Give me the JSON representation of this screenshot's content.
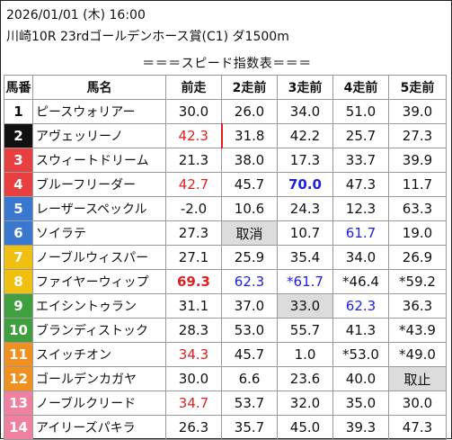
{
  "header": {
    "line1": "2026/01/01 (木) 16:00",
    "line2": "川崎10R 23rdゴールデンホース賞(C1) ダ1500m"
  },
  "title": "＝＝＝スピード指数表＝＝＝",
  "columns": [
    "馬番",
    "馬名",
    "前走",
    "2走前",
    "3走前",
    "4走前",
    "5走前"
  ],
  "colors": {
    "red": "#e02020",
    "blue": "#2020e0",
    "gray_cell": "#dcdcdc",
    "frame1": "#ffffff",
    "frame2": "#111111",
    "frame3": "#e84040",
    "frame4": "#e84040",
    "frame5": "#3a78d0",
    "frame6": "#3a78d0",
    "frame7": "#f0c010",
    "frame8": "#f0c010",
    "frame9": "#40a040",
    "frame10": "#40a040",
    "frame11": "#f09020",
    "frame12": "#f09020",
    "frame13": "#f080a0",
    "frame14": "#f080a0"
  },
  "rows": [
    {
      "no": "1",
      "name": "ピースウォリアー",
      "v": [
        "30.0",
        "26.0",
        "34.0",
        "51.0",
        "39.0"
      ],
      "bg": "#ffffff",
      "fg": "#111111",
      "styles": [
        "",
        "",
        "",
        "",
        ""
      ]
    },
    {
      "no": "2",
      "name": "アヴェッリーノ",
      "v": [
        "42.3",
        "31.8",
        "42.2",
        "25.7",
        "27.3"
      ],
      "bg": "#111111",
      "fg": "#ffffff",
      "styles": [
        "red mark",
        "",
        "",
        "",
        ""
      ]
    },
    {
      "no": "3",
      "name": "スウィートドリーム",
      "v": [
        "21.3",
        "38.0",
        "17.3",
        "33.7",
        "39.9"
      ],
      "bg": "#e84040",
      "fg": "#ffffff",
      "styles": [
        "",
        "",
        "",
        "",
        ""
      ]
    },
    {
      "no": "4",
      "name": "ブルーフリーダー",
      "v": [
        "42.7",
        "45.7",
        "70.0",
        "47.3",
        "11.7"
      ],
      "bg": "#e84040",
      "fg": "#ffffff",
      "styles": [
        "red",
        "",
        "blue bold",
        "",
        ""
      ]
    },
    {
      "no": "5",
      "name": "レーザースペックル",
      "v": [
        "-2.0",
        "10.6",
        "24.3",
        "12.3",
        "63.3"
      ],
      "bg": "#3a78d0",
      "fg": "#ffffff",
      "styles": [
        "",
        "",
        "",
        "",
        ""
      ]
    },
    {
      "no": "6",
      "name": "ソイラテ",
      "v": [
        "27.3",
        "取消",
        "10.7",
        "61.7",
        "19.0"
      ],
      "bg": "#3a78d0",
      "fg": "#ffffff",
      "styles": [
        "",
        "gray",
        "",
        "blue",
        ""
      ]
    },
    {
      "no": "7",
      "name": "ノーブルウィスパー",
      "v": [
        "27.1",
        "25.9",
        "35.4",
        "34.0",
        "26.9"
      ],
      "bg": "#f0c010",
      "fg": "#ffffff",
      "styles": [
        "",
        "",
        "",
        "",
        ""
      ]
    },
    {
      "no": "8",
      "name": "ファイヤーウィップ",
      "v": [
        "69.3",
        "62.3",
        "*61.7",
        "*46.4",
        "*59.2"
      ],
      "bg": "#f0c010",
      "fg": "#ffffff",
      "styles": [
        "red bold",
        "blue",
        "blue",
        "",
        ""
      ]
    },
    {
      "no": "9",
      "name": "エイシントゥラン",
      "v": [
        "31.1",
        "37.0",
        "33.0",
        "62.3",
        "36.3"
      ],
      "bg": "#40a040",
      "fg": "#ffffff",
      "styles": [
        "",
        "",
        "gray",
        "blue",
        ""
      ]
    },
    {
      "no": "10",
      "name": "ブランディストック",
      "v": [
        "28.3",
        "53.0",
        "55.7",
        "41.3",
        "*43.9"
      ],
      "bg": "#40a040",
      "fg": "#ffffff",
      "styles": [
        "",
        "",
        "",
        "",
        ""
      ]
    },
    {
      "no": "11",
      "name": "スイッチオン",
      "v": [
        "34.3",
        "45.7",
        "1.0",
        "*53.0",
        "*49.0"
      ],
      "bg": "#f09020",
      "fg": "#ffffff",
      "styles": [
        "red",
        "",
        "",
        "",
        ""
      ]
    },
    {
      "no": "12",
      "name": "ゴールデンカガヤ",
      "v": [
        "30.0",
        "6.6",
        "23.6",
        "40.0",
        "取止"
      ],
      "bg": "#f09020",
      "fg": "#ffffff",
      "styles": [
        "",
        "",
        "",
        "",
        "gray"
      ]
    },
    {
      "no": "13",
      "name": "ノーブルクリード",
      "v": [
        "34.7",
        "53.7",
        "32.0",
        "35.0",
        "30.0"
      ],
      "bg": "#f080a0",
      "fg": "#ffffff",
      "styles": [
        "red",
        "",
        "",
        "",
        ""
      ]
    },
    {
      "no": "14",
      "name": "アイリーズパキラ",
      "v": [
        "26.3",
        "35.7",
        "45.0",
        "39.3",
        "47.3"
      ],
      "bg": "#f080a0",
      "fg": "#ffffff",
      "styles": [
        "",
        "",
        "",
        "",
        ""
      ]
    }
  ]
}
